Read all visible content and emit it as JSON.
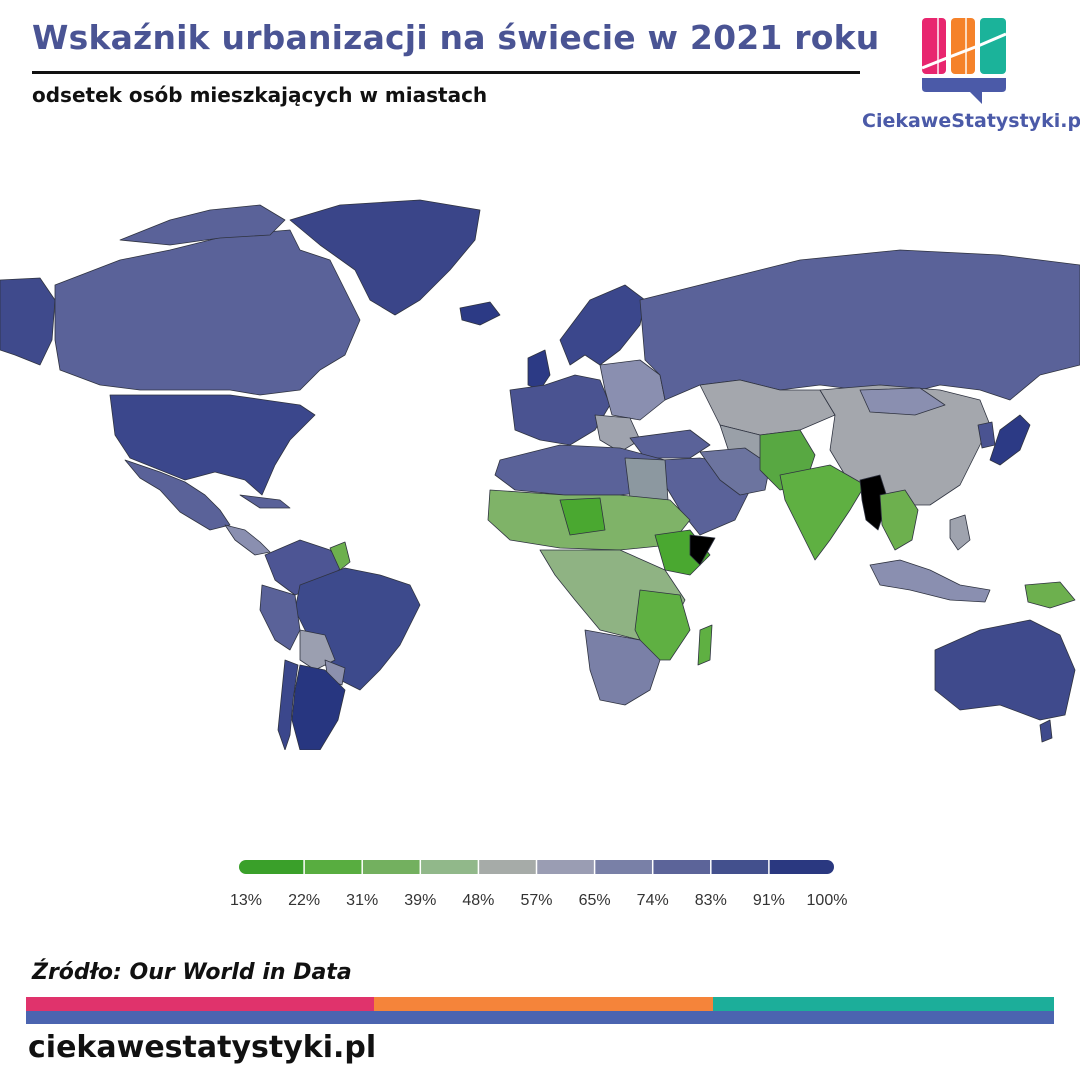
{
  "header": {
    "title": "Wskaźnik urbanizacji na świecie w 2021 roku",
    "subtitle": "odsetek osób mieszkających w miastach"
  },
  "brand": {
    "name": "CiekaweStatystyki.pl",
    "logo_colors": [
      "#e8266f",
      "#f5822a",
      "#1bb39a",
      "#4b5aa8"
    ]
  },
  "map": {
    "kind": "choropleth world map",
    "metric_unit": "%",
    "no_data_color": "#000000",
    "palette_examples": {
      "high": "#3a4a8e",
      "mid": "#a3a5a8",
      "low": "#55a83a"
    }
  },
  "legend": {
    "ticks": [
      "13%",
      "22%",
      "31%",
      "39%",
      "48%",
      "57%",
      "65%",
      "74%",
      "83%",
      "91%",
      "100%"
    ],
    "colors": [
      "#3aa02a",
      "#58ad40",
      "#73b05f",
      "#91b88a",
      "#a6aba8",
      "#9a9db3",
      "#7980a7",
      "#5c6499",
      "#43508d",
      "#2a3880"
    ]
  },
  "footer": {
    "source": "Źródło: Our World in Data",
    "site": "ciekawestatystyki.pl",
    "stripe_colors": [
      "#e0336c",
      "#f5843a",
      "#1cae9a",
      "#4b64b0"
    ]
  }
}
